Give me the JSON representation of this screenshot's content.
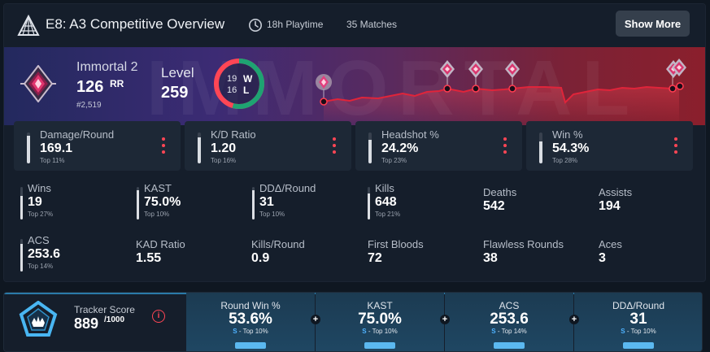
{
  "header": {
    "title": "E8: A3 Competitive Overview",
    "playtime": "18h Playtime",
    "matches": "35 Matches",
    "show_more_label": "Show More"
  },
  "rank": {
    "name": "Immortal 2",
    "rr_value": "126",
    "rr_unit": "RR",
    "leaderboard": "#2,519",
    "watermark": "IMMORTAL"
  },
  "level": {
    "label": "Level",
    "value": "259"
  },
  "winloss": {
    "wins": "19",
    "losses": "16",
    "w_label": "W",
    "l_label": "L",
    "win_fraction": 0.543
  },
  "main_stats": [
    {
      "label": "Damage/Round",
      "value": "169.1",
      "top": "Top 11%",
      "fill": 0.89
    },
    {
      "label": "K/D Ratio",
      "value": "1.20",
      "top": "Top 16%",
      "fill": 0.84
    },
    {
      "label": "Headshot %",
      "value": "24.2%",
      "top": "Top 23%",
      "fill": 0.77
    },
    {
      "label": "Win %",
      "value": "54.3%",
      "top": "Top 28%",
      "fill": 0.72
    }
  ],
  "grid_stats_row1": [
    {
      "label": "Wins",
      "value": "19",
      "top": "Top 27%",
      "fill": 0.73
    },
    {
      "label": "KAST",
      "value": "75.0%",
      "top": "Top 10%",
      "fill": 0.9
    },
    {
      "label": "DDΔ/Round",
      "value": "31",
      "top": "Top 10%",
      "fill": 0.9
    },
    {
      "label": "Kills",
      "value": "648",
      "top": "Top 21%",
      "fill": 0.79
    },
    {
      "label": "Deaths",
      "value": "542"
    },
    {
      "label": "Assists",
      "value": "194"
    }
  ],
  "grid_stats_row2": [
    {
      "label": "ACS",
      "value": "253.6",
      "top": "Top 14%",
      "fill": 0.86
    },
    {
      "label": "KAD Ratio",
      "value": "1.55"
    },
    {
      "label": "Kills/Round",
      "value": "0.9"
    },
    {
      "label": "First Bloods",
      "value": "72"
    },
    {
      "label": "Flawless Rounds",
      "value": "38"
    },
    {
      "label": "Aces",
      "value": "3"
    }
  ],
  "tracker": {
    "label": "Tracker Score",
    "score": "889",
    "max": "/1000",
    "info_symbol": "i",
    "metrics": [
      {
        "label": "Round Win %",
        "value": "53.6%",
        "grade": "S",
        "top": " - Top 10%"
      },
      {
        "label": "KAST",
        "value": "75.0%",
        "grade": "S",
        "top": " - Top 10%"
      },
      {
        "label": "ACS",
        "value": "253.6",
        "grade": "S",
        "top": " - Top 14%"
      },
      {
        "label": "DDΔ/Round",
        "value": "31",
        "grade": "S",
        "top": " - Top 10%"
      }
    ],
    "plus_symbol": "+"
  },
  "colors": {
    "accent_red": "#ff4655",
    "win_green": "#1ea372",
    "tracker_blue": "#4fb3ff"
  },
  "icons": [
    "logo-icon",
    "clock-icon",
    "rank-icon",
    "kebab-icon",
    "info-icon",
    "tracker-badge-icon"
  ]
}
